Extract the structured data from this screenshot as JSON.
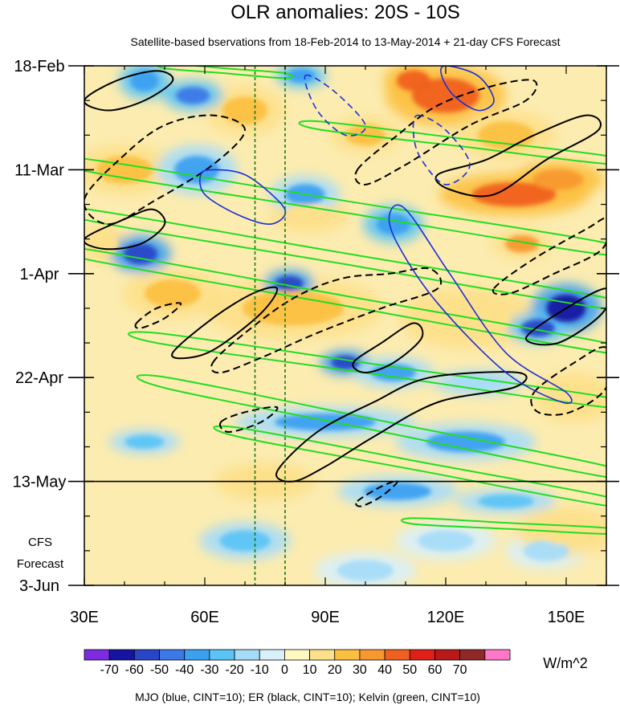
{
  "chart_data": {
    "type": "heatmap",
    "title": "OLR anomalies: 20S - 10S",
    "subtitle": "Satellite-based bservations from 18-Feb-2014 to 13-May-2014 + 21-day CFS Forecast",
    "x_axis": {
      "range": [
        30,
        160
      ],
      "ticks": [
        {
          "value": 30,
          "label": "30E"
        },
        {
          "value": 60,
          "label": "60E"
        },
        {
          "value": 90,
          "label": "90E"
        },
        {
          "value": 120,
          "label": "120E"
        },
        {
          "value": 150,
          "label": "150E"
        }
      ],
      "minor_step": 10
    },
    "y_axis": {
      "range_days": [
        0,
        105
      ],
      "direction": "time increases downward",
      "ticks": [
        {
          "day": 0,
          "label": "18-Feb"
        },
        {
          "day": 21,
          "label": "11-Mar"
        },
        {
          "day": 42,
          "label": "1-Apr"
        },
        {
          "day": 63,
          "label": "22-Apr"
        },
        {
          "day": 84,
          "label": "13-May"
        },
        {
          "day": 105,
          "label": "3-Jun"
        }
      ]
    },
    "observation_end": {
      "day": 84,
      "label": "13-May"
    },
    "forecast_label": [
      "CFS",
      "Forecast"
    ],
    "reference_longitudes": [
      72.5,
      80
    ],
    "colorbar": {
      "units": "W/m^2",
      "labels": [
        "-70",
        "-60",
        "-50",
        "-40",
        "-30",
        "-20",
        "-10",
        "0",
        "10",
        "20",
        "30",
        "40",
        "50",
        "60",
        "70"
      ],
      "colors": [
        "#7d2be0",
        "#1414a0",
        "#2846c8",
        "#3c78e6",
        "#3ca0f0",
        "#5cc4f5",
        "#a6dcf8",
        "#d8f0fa",
        "#fff8c0",
        "#fde08a",
        "#fcc040",
        "#f89830",
        "#f06020",
        "#e02018",
        "#b81818",
        "#902828",
        "#ff78c8"
      ]
    },
    "blobs": [
      {
        "lon": 120,
        "day": 6,
        "rx": 12,
        "ry": 5,
        "value": 48
      },
      {
        "lon": 112,
        "day": 3,
        "rx": 6,
        "ry": 3,
        "value": 42
      },
      {
        "lon": 137,
        "day": 26,
        "rx": 15,
        "ry": 3.5,
        "value": 42
      },
      {
        "lon": 148,
        "day": 23,
        "rx": 9,
        "ry": 3,
        "value": 38
      },
      {
        "lon": 139,
        "day": 36,
        "rx": 6,
        "ry": 2.5,
        "value": 36
      },
      {
        "lon": 100,
        "day": 14,
        "rx": 7,
        "ry": 3,
        "value": 28
      },
      {
        "lon": 135,
        "day": 14,
        "rx": 10,
        "ry": 4,
        "value": 26
      },
      {
        "lon": 82,
        "day": 49,
        "rx": 18,
        "ry": 5,
        "value": 24
      },
      {
        "lon": 52,
        "day": 46,
        "rx": 10,
        "ry": 4,
        "value": 22
      },
      {
        "lon": 40,
        "day": 21,
        "rx": 10,
        "ry": 4,
        "value": 22
      },
      {
        "lon": 126,
        "day": 51,
        "rx": 14,
        "ry": 5,
        "value": 16
      },
      {
        "lon": 152,
        "day": 67,
        "rx": 8,
        "ry": 4,
        "value": 18
      },
      {
        "lon": 70,
        "day": 9,
        "rx": 8,
        "ry": 4,
        "value": 20
      },
      {
        "lon": 35,
        "day": 36,
        "rx": 5,
        "ry": 3,
        "value": 18
      },
      {
        "lon": 86,
        "day": 30,
        "rx": 8,
        "ry": 3,
        "value": 16
      },
      {
        "lon": 45,
        "day": 3,
        "rx": 5,
        "ry": 3,
        "value": -40
      },
      {
        "lon": 57,
        "day": 6,
        "rx": 6,
        "ry": 2.5,
        "value": -45
      },
      {
        "lon": 84,
        "day": 2,
        "rx": 5,
        "ry": 2,
        "value": -38
      },
      {
        "lon": 44,
        "day": 38,
        "rx": 6,
        "ry": 3,
        "value": -58
      },
      {
        "lon": 81,
        "day": 44,
        "rx": 5,
        "ry": 2.2,
        "value": -58
      },
      {
        "lon": 58,
        "day": 21,
        "rx": 8,
        "ry": 4,
        "value": -36
      },
      {
        "lon": 85,
        "day": 26,
        "rx": 7,
        "ry": 3,
        "value": -32
      },
      {
        "lon": 107,
        "day": 32,
        "rx": 6,
        "ry": 3,
        "value": -40
      },
      {
        "lon": 150,
        "day": 49,
        "rx": 7,
        "ry": 4,
        "value": -65
      },
      {
        "lon": 143,
        "day": 53,
        "rx": 6,
        "ry": 2.5,
        "value": -52
      },
      {
        "lon": 95,
        "day": 60,
        "rx": 5,
        "ry": 2,
        "value": -60
      },
      {
        "lon": 107,
        "day": 62,
        "rx": 8,
        "ry": 2.5,
        "value": -34
      },
      {
        "lon": 90,
        "day": 72,
        "rx": 18,
        "ry": 2.5,
        "value": -36
      },
      {
        "lon": 125,
        "day": 76,
        "rx": 14,
        "ry": 3,
        "value": -32
      },
      {
        "lon": 45,
        "day": 76,
        "rx": 7,
        "ry": 2,
        "value": -30
      },
      {
        "lon": 70,
        "day": 96,
        "rx": 9,
        "ry": 3,
        "value": -24
      },
      {
        "lon": 108,
        "day": 86,
        "rx": 12,
        "ry": 2.5,
        "value": -32
      },
      {
        "lon": 135,
        "day": 88,
        "rx": 10,
        "ry": 2,
        "value": -28
      },
      {
        "lon": 120,
        "day": 96,
        "rx": 10,
        "ry": 3,
        "value": -16
      },
      {
        "lon": 145,
        "day": 98,
        "rx": 8,
        "ry": 3,
        "value": -14
      },
      {
        "lon": 100,
        "day": 102,
        "rx": 10,
        "ry": 3,
        "value": -12
      },
      {
        "lon": 128,
        "day": 64,
        "rx": 9,
        "ry": 2,
        "value": -20
      },
      {
        "lon": 75,
        "day": 84,
        "rx": 10,
        "ry": 3,
        "value": 14
      },
      {
        "lon": 150,
        "day": 94,
        "rx": 10,
        "ry": 4,
        "value": 14
      }
    ],
    "mjo_contours": [
      {
        "kind": "solid",
        "pts": [
          [
            62,
            21
          ],
          [
            70,
            22
          ],
          [
            78,
            27
          ],
          [
            80,
            30
          ],
          [
            76,
            32
          ],
          [
            68,
            30
          ],
          [
            60,
            26
          ],
          [
            59,
            22
          ]
        ]
      },
      {
        "kind": "solid",
        "pts": [
          [
            120,
            0
          ],
          [
            128,
            2
          ],
          [
            132,
            7
          ],
          [
            128,
            9
          ],
          [
            122,
            6
          ],
          [
            119,
            2
          ]
        ]
      },
      {
        "kind": "solid",
        "pts": [
          [
            106,
            30
          ],
          [
            110,
            29
          ],
          [
            121,
            42
          ],
          [
            135,
            58
          ],
          [
            150,
            66
          ],
          [
            149,
            68
          ],
          [
            135,
            62
          ],
          [
            118,
            48
          ],
          [
            108,
            36
          ]
        ]
      },
      {
        "kind": "dashed",
        "pts": [
          [
            113,
            10
          ],
          [
            120,
            13
          ],
          [
            126,
            20
          ],
          [
            120,
            24
          ],
          [
            114,
            19
          ],
          [
            112,
            14
          ]
        ]
      },
      {
        "kind": "dashed",
        "pts": [
          [
            85,
            2
          ],
          [
            92,
            5
          ],
          [
            100,
            12
          ],
          [
            95,
            14
          ],
          [
            88,
            9
          ]
        ]
      }
    ],
    "er_contours": [
      {
        "kind": "solid",
        "pts": [
          [
            30,
            7
          ],
          [
            38,
            3
          ],
          [
            48,
            1
          ],
          [
            52,
            3
          ],
          [
            45,
            7
          ],
          [
            36,
            9
          ]
        ]
      },
      {
        "kind": "solid",
        "pts": [
          [
            30,
            35
          ],
          [
            40,
            31
          ],
          [
            47,
            29
          ],
          [
            50,
            32
          ],
          [
            44,
            36
          ],
          [
            35,
            37
          ]
        ]
      },
      {
        "kind": "solid",
        "pts": [
          [
            52,
            58
          ],
          [
            62,
            51
          ],
          [
            72,
            46
          ],
          [
            78,
            45
          ],
          [
            74,
            50
          ],
          [
            63,
            57
          ],
          [
            56,
            59
          ]
        ]
      },
      {
        "kind": "solid",
        "pts": [
          [
            97,
            60
          ],
          [
            104,
            56
          ],
          [
            112,
            52
          ],
          [
            114,
            55
          ],
          [
            107,
            60
          ],
          [
            100,
            62
          ]
        ]
      },
      {
        "kind": "solid",
        "pts": [
          [
            78,
            82
          ],
          [
            88,
            74
          ],
          [
            102,
            68
          ],
          [
            116,
            63
          ],
          [
            138,
            62
          ],
          [
            137,
            65
          ],
          [
            118,
            68
          ],
          [
            102,
            75
          ],
          [
            90,
            81
          ],
          [
            82,
            84
          ]
        ]
      },
      {
        "kind": "solid",
        "pts": [
          [
            118,
            22
          ],
          [
            130,
            19
          ],
          [
            142,
            14
          ],
          [
            155,
            10
          ],
          [
            158,
            13
          ],
          [
            145,
            19
          ],
          [
            132,
            26
          ],
          [
            121,
            25
          ]
        ]
      },
      {
        "kind": "solid",
        "pts": [
          [
            140,
            55
          ],
          [
            150,
            49
          ],
          [
            160,
            45
          ],
          [
            159,
            50
          ],
          [
            148,
            56
          ]
        ]
      },
      {
        "kind": "dashed",
        "pts": [
          [
            30,
            27
          ],
          [
            40,
            18
          ],
          [
            50,
            12
          ],
          [
            62,
            10
          ],
          [
            70,
            13
          ],
          [
            62,
            20
          ],
          [
            48,
            27
          ],
          [
            36,
            32
          ]
        ]
      },
      {
        "kind": "dashed",
        "pts": [
          [
            98,
            21
          ],
          [
            108,
            14
          ],
          [
            118,
            8
          ],
          [
            132,
            4
          ],
          [
            142,
            3
          ],
          [
            140,
            7
          ],
          [
            126,
            12
          ],
          [
            110,
            20
          ],
          [
            100,
            24
          ]
        ]
      },
      {
        "kind": "dashed",
        "pts": [
          [
            62,
            60
          ],
          [
            70,
            54
          ],
          [
            82,
            47
          ],
          [
            94,
            43
          ],
          [
            106,
            42
          ],
          [
            116,
            41
          ],
          [
            118,
            45
          ],
          [
            104,
            49
          ],
          [
            88,
            54
          ],
          [
            74,
            59
          ],
          [
            64,
            62
          ]
        ]
      },
      {
        "kind": "dashed",
        "pts": [
          [
            132,
            45
          ],
          [
            142,
            39
          ],
          [
            155,
            33
          ],
          [
            160,
            31
          ],
          [
            159,
            37
          ],
          [
            147,
            42
          ],
          [
            136,
            46
          ]
        ]
      },
      {
        "kind": "dashed",
        "pts": [
          [
            142,
            66
          ],
          [
            152,
            60
          ],
          [
            160,
            57
          ],
          [
            160,
            65
          ],
          [
            151,
            70
          ],
          [
            143,
            70
          ]
        ]
      },
      {
        "kind": "dashed",
        "pts": [
          [
            64,
            72
          ],
          [
            70,
            70
          ],
          [
            78,
            69
          ],
          [
            74,
            72
          ],
          [
            66,
            74
          ]
        ]
      },
      {
        "kind": "dashed",
        "pts": [
          [
            98,
            88
          ],
          [
            104,
            85
          ],
          [
            108,
            84
          ],
          [
            104,
            87
          ],
          [
            99,
            89
          ]
        ]
      },
      {
        "kind": "dashed",
        "pts": [
          [
            43,
            52
          ],
          [
            48,
            49
          ],
          [
            54,
            48
          ],
          [
            50,
            51
          ],
          [
            44,
            53
          ]
        ]
      }
    ],
    "kelvin_bands": [
      {
        "start": [
          30,
          20
        ],
        "end": [
          160,
          37
        ],
        "thickness": 2.4
      },
      {
        "start": [
          30,
          30
        ],
        "end": [
          160,
          48
        ],
        "thickness": 2.2
      },
      {
        "start": [
          30,
          38
        ],
        "end": [
          160,
          57
        ],
        "thickness": 2.0
      },
      {
        "start": [
          48,
          55
        ],
        "end": [
          160,
          68
        ],
        "thickness": 2.0
      },
      {
        "start": [
          50,
          64
        ],
        "end": [
          160,
          82
        ],
        "thickness": 2.2
      },
      {
        "start": [
          68,
          74
        ],
        "end": [
          160,
          88
        ],
        "thickness": 1.8
      },
      {
        "start": [
          112,
          92
        ],
        "end": [
          160,
          94
        ],
        "thickness": 1.2
      },
      {
        "start": [
          88,
          12
        ],
        "end": [
          160,
          19
        ],
        "thickness": 1.6
      },
      {
        "start": [
          50,
          0
        ],
        "end": [
          80,
          2
        ],
        "thickness": 1.0
      }
    ]
  },
  "footer": {
    "legend_text": "MJO (blue, CINT=10); ER (black, CINT=10); Kelvin (green, CINT=10)"
  }
}
